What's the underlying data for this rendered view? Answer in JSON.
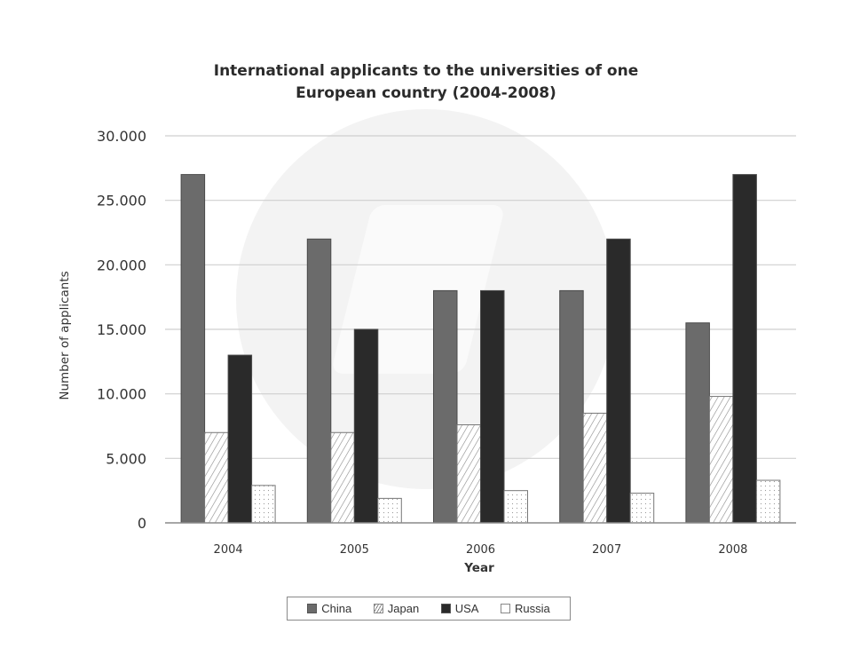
{
  "chart_data": {
    "type": "bar",
    "title": "International applicants to the universities of one European country (2004-2008)",
    "title_lines": [
      "International applicants to the universities of one",
      "European country (2004-2008)"
    ],
    "xlabel": "Year",
    "ylabel": "Number of applicants",
    "categories": [
      "2004",
      "2005",
      "2006",
      "2007",
      "2008"
    ],
    "series": [
      {
        "name": "China",
        "fill": "#6b6b6b",
        "pattern": "solid",
        "values": [
          27000,
          22000,
          18000,
          18000,
          15500
        ]
      },
      {
        "name": "Japan",
        "fill": "#ffffff",
        "pattern": "hatch",
        "values": [
          7000,
          7000,
          7600,
          8500,
          9800
        ]
      },
      {
        "name": "USA",
        "fill": "#2a2a2a",
        "pattern": "solid",
        "values": [
          13000,
          15000,
          18000,
          22000,
          27000
        ]
      },
      {
        "name": "Russia",
        "fill": "#ffffff",
        "pattern": "dotted",
        "values": [
          2900,
          1900,
          2500,
          2300,
          3300
        ]
      }
    ],
    "ylim": [
      0,
      30000
    ],
    "yticks": [
      0,
      5000,
      10000,
      15000,
      20000,
      25000,
      30000
    ],
    "ytick_labels": [
      "0",
      "5.000",
      "10.000",
      "15.000",
      "20.000",
      "25.000",
      "30.000"
    ],
    "grid": true,
    "legend_position": "bottom"
  },
  "legend": {
    "items": [
      {
        "label": "China"
      },
      {
        "label": "Japan"
      },
      {
        "label": "USA"
      },
      {
        "label": "Russia"
      }
    ]
  }
}
